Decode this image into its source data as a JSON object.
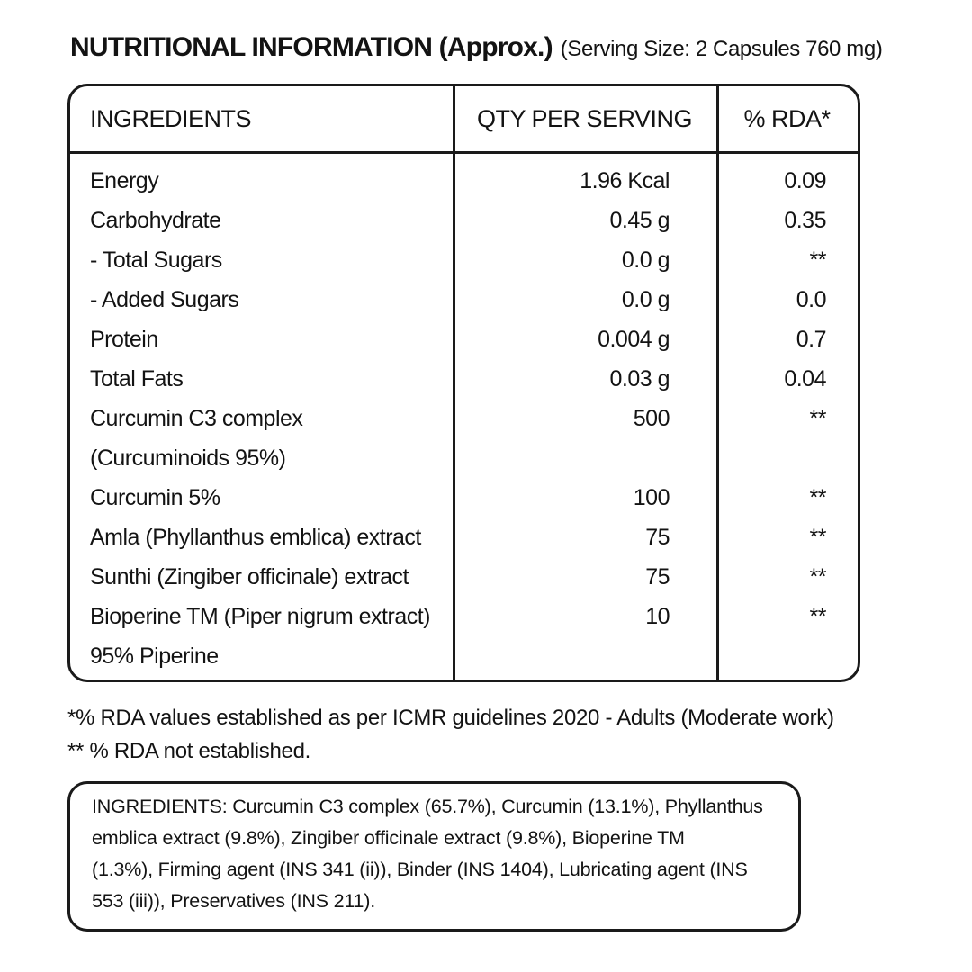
{
  "header": {
    "title": "NUTRITIONAL INFORMATION (Approx.)",
    "serving_size": "(Serving Size: 2 Capsules 760 mg)"
  },
  "table": {
    "columns": [
      "INGREDIENTS",
      "QTY PER SERVING",
      "% RDA*"
    ],
    "rows": [
      {
        "name": "Energy",
        "qty": "1.96 Kcal",
        "rda": "0.09"
      },
      {
        "name": "Carbohydrate",
        "qty": "0.45 g",
        "rda": "0.35"
      },
      {
        "name": "- Total Sugars",
        "qty": "0.0 g",
        "rda": "**"
      },
      {
        "name": "- Added Sugars",
        "qty": "0.0 g",
        "rda": "0.0"
      },
      {
        "name": "Protein",
        "qty": "0.004 g",
        "rda": "0.7"
      },
      {
        "name": "Total Fats",
        "qty": "0.03 g",
        "rda": "0.04"
      },
      {
        "name": "Curcumin C3 complex",
        "qty": "500",
        "rda": "**"
      },
      {
        "name": "(Curcuminoids 95%)",
        "qty": "",
        "rda": ""
      },
      {
        "name": "Curcumin 5%",
        "qty": "100",
        "rda": "**"
      },
      {
        "name": "Amla (Phyllanthus emblica) extract",
        "qty": "75",
        "rda": "**"
      },
      {
        "name": "Sunthi (Zingiber officinale) extract",
        "qty": "75",
        "rda": "**"
      },
      {
        "name": "Bioperine TM (Piper nigrum extract)",
        "qty": "10",
        "rda": "**"
      },
      {
        "name": "95% Piperine",
        "qty": "",
        "rda": ""
      }
    ]
  },
  "footnotes": [
    "*% RDA values established as per ICMR guidelines 2020 - Adults (Moderate work)",
    "** % RDA not established."
  ],
  "ingredients_box": {
    "lines": [
      "INGREDIENTS: Curcumin C3 complex (65.7%), Curcumin (13.1%), Phyllanthus",
      "emblica extract (9.8%), Zingiber officinale extract (9.8%), Bioperine TM",
      "(1.3%), Firming agent (INS 341 (ii)), Binder (INS 1404), Lubricating agent (INS",
      "553 (iii)), Preservatives (INS 211)."
    ]
  },
  "colors": {
    "text": "#131313",
    "border": "#1a1a1a",
    "background": "#ffffff"
  }
}
